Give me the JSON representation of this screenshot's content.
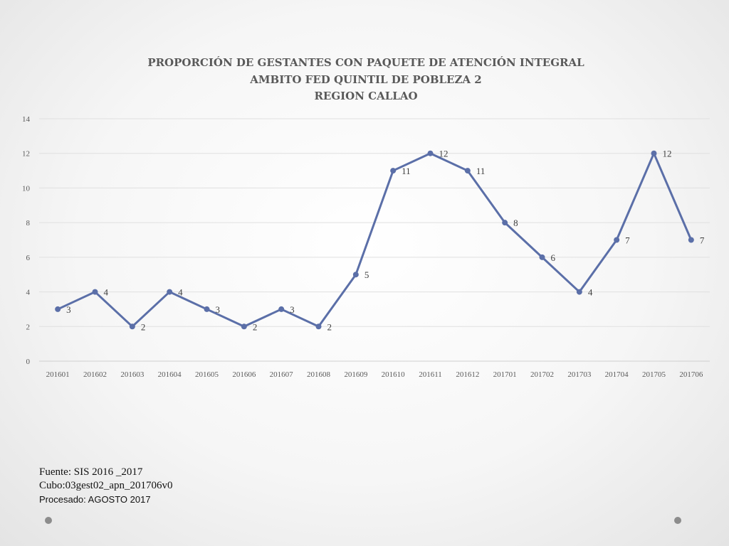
{
  "chart_data": {
    "type": "line",
    "title": [
      "PROPORCIÓN DE GESTANTES CON PAQUETE DE ATENCIÓN INTEGRAL",
      "AMBITO FED QUINTIL DE POBLEZA 2",
      "REGION CALLAO"
    ],
    "categories": [
      "201601",
      "201602",
      "201603",
      "201604",
      "201605",
      "201606",
      "201607",
      "201608",
      "201609",
      "201610",
      "201611",
      "201612",
      "201701",
      "201702",
      "201703",
      "201704",
      "201705",
      "201706"
    ],
    "series": [
      {
        "values": [
          3,
          4,
          2,
          4,
          3,
          2,
          3,
          2,
          5,
          11,
          12,
          11,
          8,
          6,
          4,
          7,
          12,
          7
        ]
      }
    ],
    "ylim": [
      0,
      14
    ],
    "yticks": [
      0,
      2,
      4,
      6,
      8,
      10,
      12,
      14
    ],
    "grid": true,
    "legend": "none",
    "line_color": "#5b6fa8"
  },
  "footer": {
    "source": "Fuente: SIS 2016 _2017",
    "cube": "Cubo:03gest02_apn_201706v0",
    "processed": "Procesado: AGOSTO 2017"
  }
}
